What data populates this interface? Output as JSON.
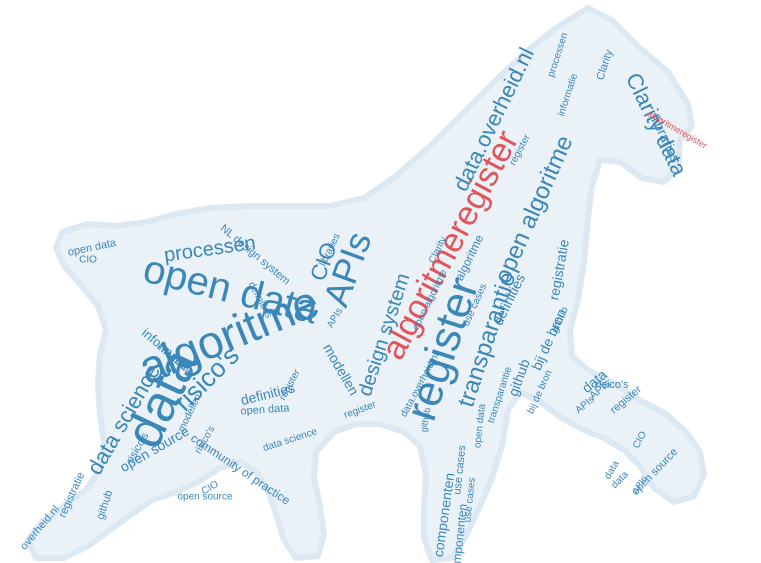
{
  "palette": {
    "primary": "#3a87b8",
    "accent": "#e0555b",
    "halo": "#eaf2f8"
  },
  "words": [
    {
      "t": "algoritmeregister",
      "c": "accent"
    },
    {
      "t": "data",
      "c": "primary"
    },
    {
      "t": "algoritme",
      "c": "primary"
    },
    {
      "t": "open data",
      "c": "primary"
    },
    {
      "t": "register",
      "c": "primary"
    },
    {
      "t": "APIs",
      "c": "primary"
    },
    {
      "t": "CIO",
      "c": "primary"
    },
    {
      "t": "risico's",
      "c": "primary"
    },
    {
      "t": "data science",
      "c": "primary"
    },
    {
      "t": "processen",
      "c": "primary"
    },
    {
      "t": "transparantie",
      "c": "primary"
    },
    {
      "t": "data.overheid.nl",
      "c": "primary"
    },
    {
      "t": "open algoritme",
      "c": "primary"
    },
    {
      "t": "design system",
      "c": "primary"
    },
    {
      "t": "Clarity data",
      "c": "primary"
    },
    {
      "t": "libraries",
      "c": "primary"
    },
    {
      "t": "registratie",
      "c": "primary"
    },
    {
      "t": "bij de bron",
      "c": "primary"
    },
    {
      "t": "github",
      "c": "primary"
    },
    {
      "t": "definities",
      "c": "primary"
    },
    {
      "t": "modellen",
      "c": "primary"
    },
    {
      "t": "informatie",
      "c": "primary"
    },
    {
      "t": "open source",
      "c": "primary"
    },
    {
      "t": "community of practice",
      "c": "primary"
    },
    {
      "t": "componenten",
      "c": "primary"
    },
    {
      "t": "use cases",
      "c": "primary"
    },
    {
      "t": "NL design system",
      "c": "primary"
    },
    {
      "t": "open data",
      "c": "primary"
    },
    {
      "t": "open data",
      "c": "primary"
    },
    {
      "t": "APIs",
      "c": "primary"
    },
    {
      "t": "risico's",
      "c": "primary"
    },
    {
      "t": "overheid.nl",
      "c": "primary"
    },
    {
      "t": "registratie",
      "c": "primary"
    },
    {
      "t": "github",
      "c": "primary"
    },
    {
      "t": "Clarity",
      "c": "primary"
    },
    {
      "t": "data",
      "c": "primary"
    },
    {
      "t": "register",
      "c": "primary"
    },
    {
      "t": "open source",
      "c": "primary"
    },
    {
      "t": "risico's",
      "c": "primary"
    },
    {
      "t": "APIs",
      "c": "primary"
    },
    {
      "t": "definities",
      "c": "primary"
    },
    {
      "t": "modellen",
      "c": "primary"
    },
    {
      "t": "componenten",
      "c": "primary"
    },
    {
      "t": "use cases",
      "c": "primary"
    },
    {
      "t": "informatie",
      "c": "primary"
    },
    {
      "t": "processen",
      "c": "primary"
    },
    {
      "t": "CIO",
      "c": "primary"
    },
    {
      "t": "data science",
      "c": "primary"
    },
    {
      "t": "github",
      "c": "primary"
    },
    {
      "t": "bij de bron",
      "c": "primary"
    },
    {
      "t": "register",
      "c": "primary"
    },
    {
      "t": "algoritme",
      "c": "primary"
    },
    {
      "t": "open data",
      "c": "primary"
    },
    {
      "t": "CIO",
      "c": "primary"
    },
    {
      "t": "APIs",
      "c": "primary"
    },
    {
      "t": "libraries",
      "c": "primary"
    },
    {
      "t": "register",
      "c": "primary"
    },
    {
      "t": "data",
      "c": "primary"
    },
    {
      "t": "informatie",
      "c": "primary"
    },
    {
      "t": "open source",
      "c": "primary"
    },
    {
      "t": "risico's",
      "c": "primary"
    },
    {
      "t": "github",
      "c": "primary"
    },
    {
      "t": "algoritmeregister",
      "c": "accent"
    },
    {
      "t": "transparantie",
      "c": "primary"
    },
    {
      "t": "definities",
      "c": "primary"
    },
    {
      "t": "data.overheid.nl",
      "c": "primary"
    },
    {
      "t": "use cases",
      "c": "primary"
    },
    {
      "t": "open algoritme",
      "c": "primary"
    },
    {
      "t": "Clarity",
      "c": "primary"
    },
    {
      "t": "register",
      "c": "primary"
    },
    {
      "t": "APIs",
      "c": "primary"
    },
    {
      "t": "CIO",
      "c": "primary"
    },
    {
      "t": "data",
      "c": "primary"
    }
  ]
}
